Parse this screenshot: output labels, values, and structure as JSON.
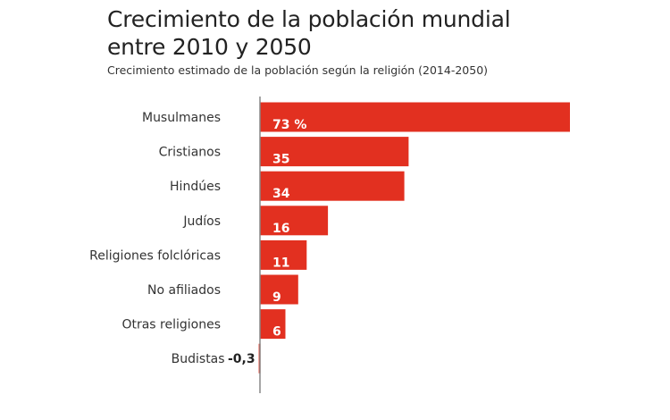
{
  "chart_data": {
    "type": "bar",
    "orientation": "horizontal",
    "title_lines": [
      "Crecimiento de la población mundial",
      "entre 2010 y 2050"
    ],
    "subtitle": "Crecimiento estimado de la población según la religión (2014-2050)",
    "categories": [
      "Musulmanes",
      "Cristianos",
      "Hindúes",
      "Judíos",
      "Religiones folclóricas",
      "No afiliados",
      "Otras religiones",
      "Budistas"
    ],
    "values": [
      73,
      35,
      34,
      16,
      11,
      9,
      6,
      -0.3
    ],
    "value_labels": [
      "73 %",
      "35",
      "34",
      "16",
      "11",
      "9",
      "6",
      "-0,3"
    ],
    "xlim": [
      -0.3,
      73
    ],
    "grid": false,
    "legend": "none",
    "bar_color": "#e23020"
  }
}
